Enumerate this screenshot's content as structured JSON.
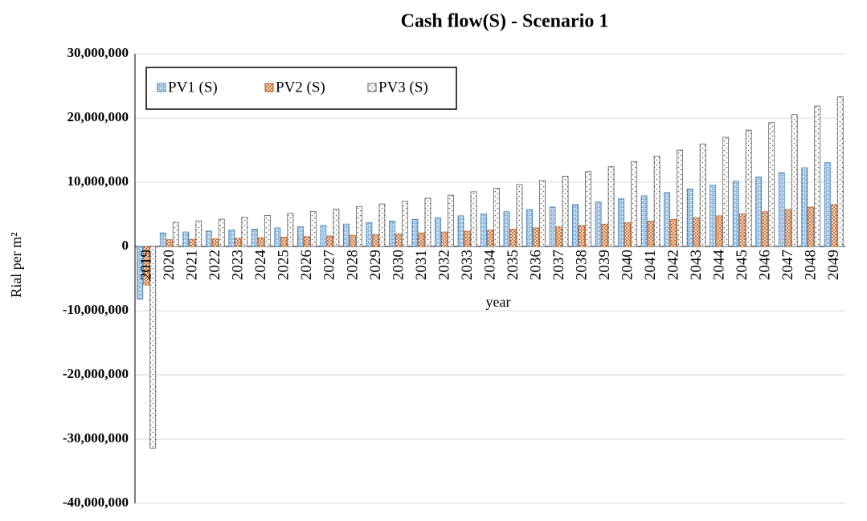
{
  "chart_data": {
    "type": "bar",
    "title": "Cash flow(S) - Scenario 1",
    "x_label": "year",
    "y_label": "Rial per m²",
    "categories": [
      "2019",
      "2020",
      "2021",
      "2022",
      "2023",
      "2024",
      "2025",
      "2026",
      "2027",
      "2028",
      "2029",
      "2030",
      "2031",
      "2032",
      "2033",
      "2034",
      "2035",
      "2036",
      "2037",
      "2038",
      "2039",
      "2040",
      "2041",
      "2042",
      "2043",
      "2044",
      "2045",
      "2046",
      "2047",
      "2048",
      "2049"
    ],
    "series": [
      {
        "name": "PV1 (S)",
        "color": "#2e75b6",
        "values": [
          -8200000,
          2100000,
          2240000,
          2380000,
          2540000,
          2700000,
          2880000,
          3060000,
          3260000,
          3480000,
          3700000,
          3940000,
          4200000,
          4470000,
          4760000,
          5070000,
          5400000,
          5750000,
          6130000,
          6520000,
          6950000,
          7400000,
          7880000,
          8390000,
          8940000,
          9520000,
          10140000,
          10800000,
          11500000,
          12250000,
          13040000
        ]
      },
      {
        "name": "PV2 (S)",
        "color": "#c55a11",
        "values": [
          -6000000,
          1050000,
          1120000,
          1190000,
          1270000,
          1350000,
          1440000,
          1530000,
          1630000,
          1740000,
          1850000,
          1970000,
          2100000,
          2240000,
          2380000,
          2540000,
          2700000,
          2880000,
          3060000,
          3260000,
          3470000,
          3700000,
          3940000,
          4200000,
          4470000,
          4760000,
          5070000,
          5400000,
          5750000,
          6120000,
          6520000
        ]
      },
      {
        "name": "PV3 (S)",
        "color": "#595959",
        "values": [
          -31400000,
          3750000,
          3990000,
          4250000,
          4530000,
          4820000,
          5140000,
          5470000,
          5830000,
          6210000,
          6610000,
          7040000,
          7500000,
          7980000,
          8510000,
          9060000,
          9650000,
          10270000,
          10940000,
          11650000,
          12410000,
          13220000,
          14070000,
          14990000,
          15960000,
          17000000,
          18110000,
          19280000,
          20540000,
          21870000,
          23290000
        ]
      }
    ],
    "ylim": [
      -40000000,
      30000000
    ],
    "yticks": [
      {
        "value": -40000000,
        "label": "-40,000,000"
      },
      {
        "value": -30000000,
        "label": "-30,000,000"
      },
      {
        "value": -20000000,
        "label": "-20,000,000"
      },
      {
        "value": -10000000,
        "label": "-10,000,000"
      },
      0,
      {
        "value": 10000000,
        "label": "10,000,000"
      },
      {
        "value": 20000000,
        "label": "20,000,000"
      },
      {
        "value": 30000000,
        "label": "30,000,000"
      }
    ],
    "grid": true,
    "legend": "upper left"
  }
}
